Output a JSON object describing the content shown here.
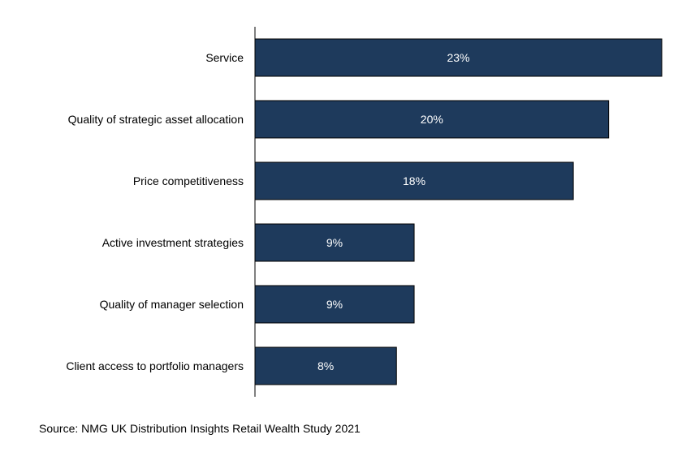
{
  "chart_data": {
    "type": "bar",
    "orientation": "horizontal",
    "categories": [
      "Service",
      "Quality of strategic asset allocation",
      "Price competitiveness",
      "Active investment strategies",
      "Quality of manager selection",
      "Client access to portfolio managers"
    ],
    "values": [
      23,
      20,
      18,
      9,
      9,
      8
    ],
    "data_labels": [
      "23%",
      "20%",
      "18%",
      "9%",
      "9%",
      "8%"
    ],
    "title": "",
    "xlabel": "",
    "ylabel": "",
    "xlim": [
      0,
      23
    ],
    "grid": false,
    "legend": "none",
    "bar_color": "#1e3a5c",
    "label_color": "#ffffff",
    "axis_color": "#000000"
  },
  "source": "Source: NMG UK Distribution Insights Retail Wealth Study 2021"
}
